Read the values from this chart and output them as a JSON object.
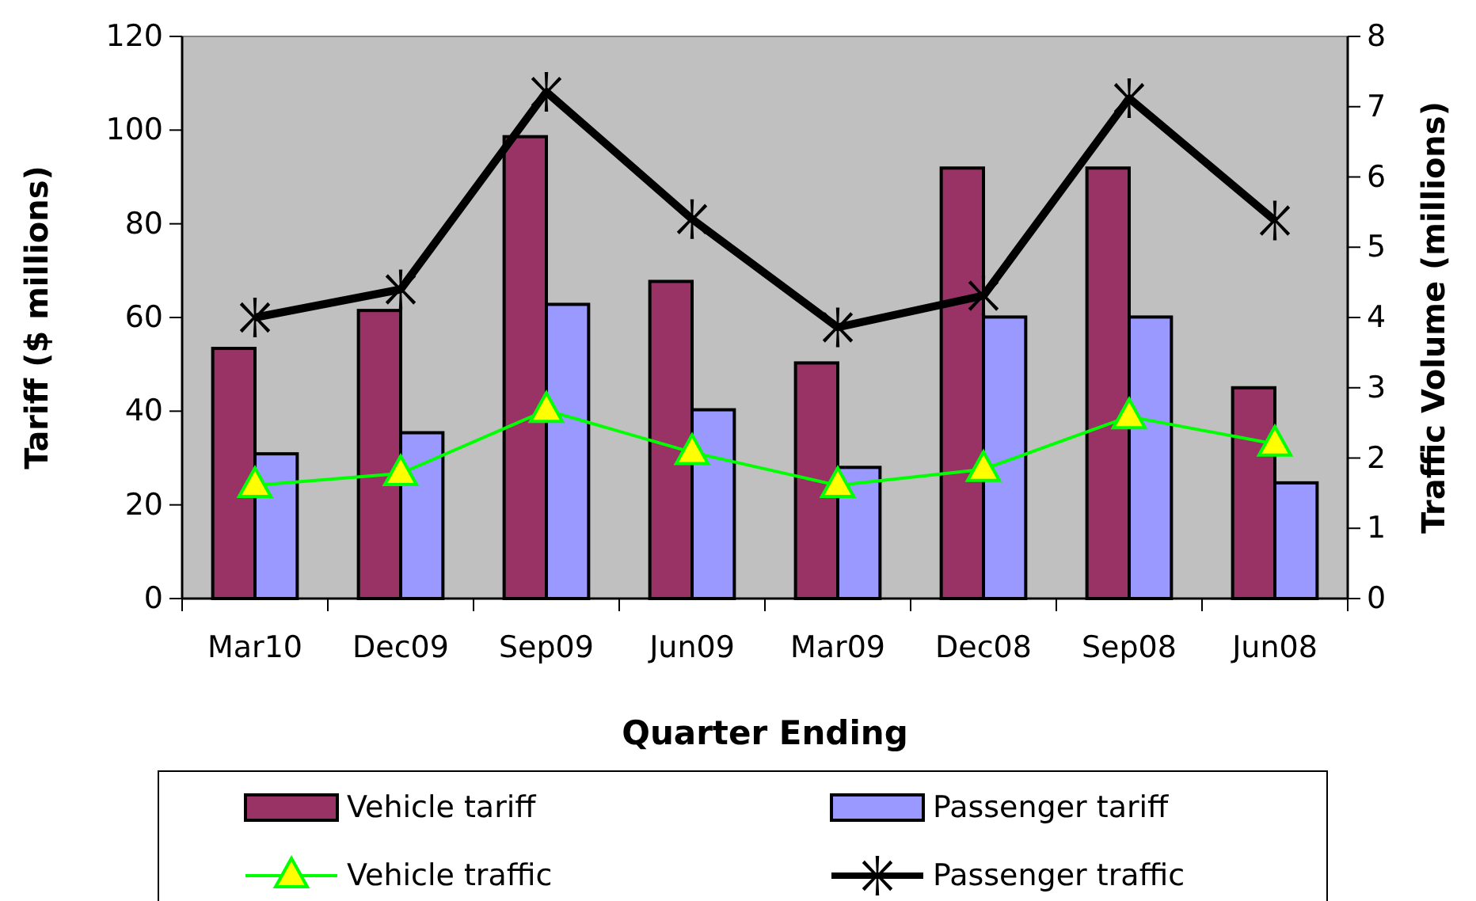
{
  "chart_data": {
    "type": "bar",
    "xlabel": "Quarter Ending",
    "ylabel": "Tariff  ($ millions)",
    "y2label": "Traffic Volume  (millions)",
    "categories": [
      "Mar10",
      "Dec09",
      "Sep09",
      "Jun09",
      "Mar09",
      "Dec08",
      "Sep08",
      "Jun08"
    ],
    "series": [
      {
        "name": "Vehicle tariff",
        "color": "#993366",
        "values": [
          53.4,
          61.5,
          98.6,
          67.7,
          50.3,
          91.9,
          91.9,
          45.0
        ]
      },
      {
        "name": "Passenger tariff",
        "color": "#9999ff",
        "values": [
          30.9,
          35.4,
          62.8,
          40.3,
          28.0,
          60.1,
          60.1,
          24.7
        ]
      },
      {
        "name": "Vehicle traffic",
        "type": "line",
        "axis": "y2",
        "color": "#00ff00",
        "marker": "triangle",
        "values": [
          1.61,
          1.78,
          2.68,
          2.08,
          1.61,
          1.84,
          2.59,
          2.2
        ]
      },
      {
        "name": "Passenger traffic",
        "type": "line",
        "axis": "y2",
        "color": "#000000",
        "marker": "star",
        "values": [
          4.0,
          4.4,
          7.21,
          5.4,
          3.86,
          4.31,
          7.12,
          5.38
        ]
      }
    ],
    "ylim": [
      0,
      120
    ],
    "yticks": [
      0,
      20,
      40,
      60,
      80,
      100,
      120
    ],
    "y2lim": [
      0,
      8
    ],
    "y2ticks": [
      0,
      1,
      2,
      3,
      4,
      5,
      6,
      7,
      8
    ],
    "grid": false,
    "legend": "bottom"
  }
}
